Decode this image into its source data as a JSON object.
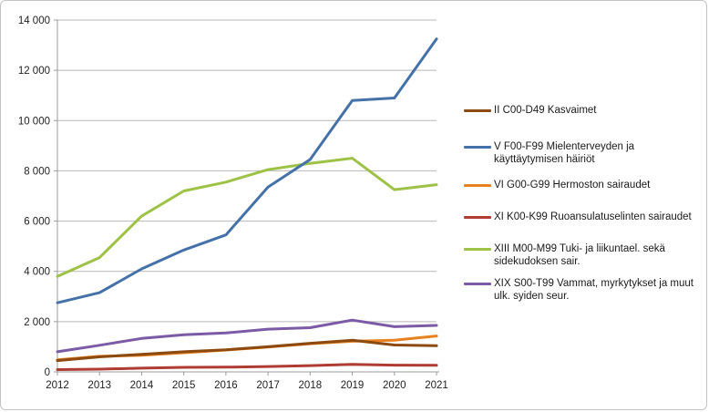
{
  "chart_data": {
    "type": "line",
    "x": [
      2012,
      2013,
      2014,
      2015,
      2016,
      2017,
      2018,
      2019,
      2020,
      2021
    ],
    "xtick_labels": [
      "2012",
      "2013",
      "2014",
      "2015",
      "2016",
      "2017",
      "2018",
      "2019",
      "2020",
      "2021"
    ],
    "series": [
      {
        "name": "II C00-D49 Kasvaimet",
        "color": "#8c4a10",
        "values": [
          450,
          600,
          700,
          800,
          880,
          1000,
          1140,
          1260,
          1070,
          1040
        ]
      },
      {
        "name": "V F00-F99 Mielenterveyden ja käyttäytymisen häiriöt",
        "color": "#4472a8",
        "values": [
          2750,
          3150,
          4100,
          4850,
          5450,
          7350,
          8450,
          10800,
          10900,
          13250
        ]
      },
      {
        "name": "VI G00-G99 Hermoston sairaudet",
        "color": "#e8811f",
        "values": [
          480,
          620,
          660,
          760,
          870,
          990,
          1120,
          1220,
          1260,
          1430
        ]
      },
      {
        "name": "XI K00-K99 Ruoansulatuselinten sairaudet",
        "color": "#ae3c33",
        "values": [
          90,
          110,
          150,
          180,
          190,
          215,
          250,
          300,
          270,
          260
        ]
      },
      {
        "name": "XIII M00-M99 Tuki- ja liikuntael. sekä sidekudoksen sair.",
        "color": "#9dc246",
        "values": [
          3800,
          4550,
          6200,
          7200,
          7550,
          8050,
          8300,
          8500,
          7250,
          7450
        ]
      },
      {
        "name": "XIX S00-T99 Vammat, myrkytykset ja muut ulk. syiden seur.",
        "color": "#7b5ba5",
        "values": [
          800,
          1060,
          1330,
          1480,
          1550,
          1700,
          1760,
          2060,
          1800,
          1850
        ]
      }
    ],
    "title": "",
    "xlabel": "",
    "ylabel": "",
    "ylim": [
      0,
      14000
    ],
    "ytick_step": 2000,
    "ytick_labels": [
      "0",
      "2 000",
      "4 000",
      "6 000",
      "8 000",
      "10 000",
      "12 000",
      "14 000"
    ],
    "grid": true,
    "legend_position": "right"
  },
  "legend": {
    "items": [
      {
        "lines": [
          "II C00-D49 Kasvaimet"
        ],
        "color": "#8c4a10"
      },
      {
        "lines": [
          "V F00-F99 Mielenterveyden ja",
          "käyttäytymisen häiriöt"
        ],
        "color": "#4472a8"
      },
      {
        "lines": [
          "VI G00-G99 Hermoston sairaudet"
        ],
        "color": "#e8811f"
      },
      {
        "lines": [
          "XI K00-K99 Ruoansulatuselinten sairaudet"
        ],
        "color": "#ae3c33"
      },
      {
        "lines": [
          "XIII M00-M99 Tuki- ja liikuntael. sekä",
          "sidekudoksen sair."
        ],
        "color": "#9dc246"
      },
      {
        "lines": [
          "XIX S00-T99 Vammat, myrkytykset ja muut",
          "ulk. syiden seur."
        ],
        "color": "#7b5ba5"
      }
    ]
  },
  "colors": {
    "gridline": "#b8b8b8",
    "axis": "#9b9b9b",
    "tick_text": "#1f1f1f",
    "frame_border": "#c3c3c3",
    "background": "#ffffff"
  }
}
